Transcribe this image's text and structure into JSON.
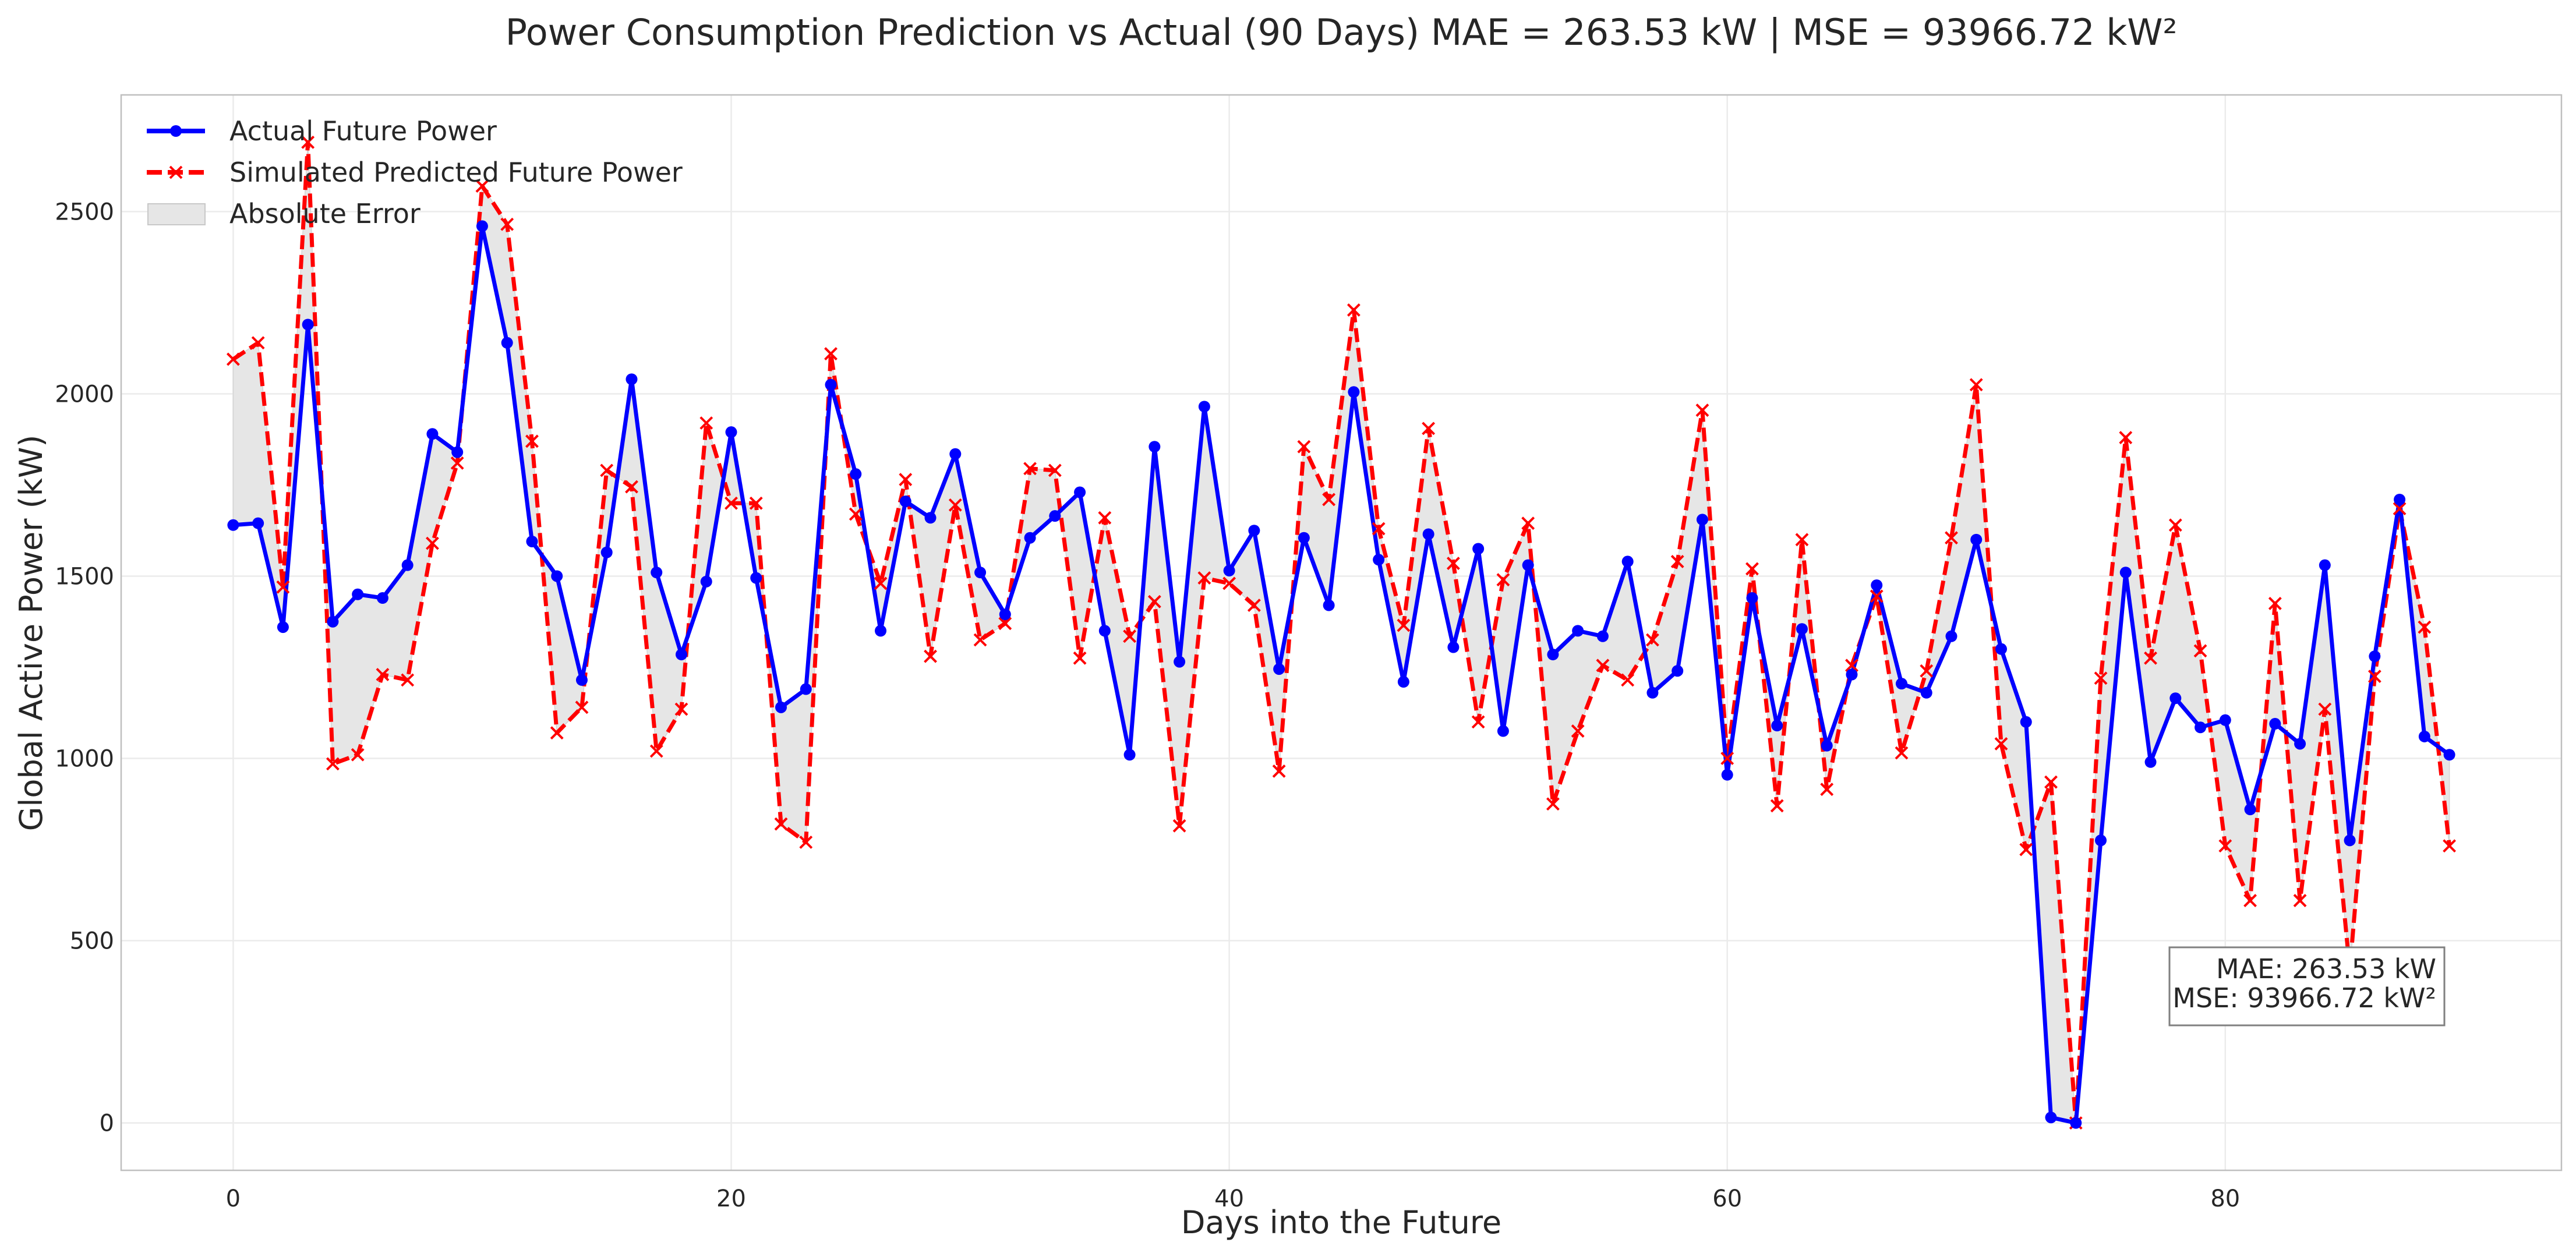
{
  "chart_data": {
    "type": "line",
    "title": "Power Consumption Prediction vs Actual (90 Days) MAE = 263.53 kW | MSE = 93966.72 kW²",
    "xlabel": "Days into the Future",
    "ylabel": "Global Active Power (kW)",
    "xlim": [
      -4.5,
      93.5
    ],
    "ylim": [
      -130,
      2820
    ],
    "xticks": [
      0,
      20,
      40,
      60,
      80
    ],
    "yticks": [
      0,
      500,
      1000,
      1500,
      2000,
      2500
    ],
    "grid": true,
    "legend_position": "top-left",
    "legend": [
      "Actual Future Power",
      "Simulated Predicted Future Power",
      "Absolute Error"
    ],
    "annotation": {
      "lines": [
        "MAE: 263.53 kW",
        "MSE: 93966.72 kW²"
      ],
      "position": "lower-right"
    },
    "x": [
      0,
      1,
      2,
      3,
      4,
      5,
      6,
      7,
      8,
      9,
      10,
      11,
      12,
      13,
      14,
      15,
      16,
      17,
      18,
      19,
      20,
      21,
      22,
      23,
      24,
      25,
      26,
      27,
      28,
      29,
      30,
      31,
      32,
      33,
      34,
      35,
      36,
      37,
      38,
      39,
      40,
      41,
      42,
      43,
      44,
      45,
      46,
      47,
      48,
      49,
      50,
      51,
      52,
      53,
      54,
      55,
      56,
      57,
      58,
      59,
      60,
      61,
      62,
      63,
      64,
      65,
      66,
      67,
      68,
      69,
      70,
      71,
      72,
      73,
      74,
      75,
      76,
      77,
      78,
      79,
      80,
      81,
      82,
      83,
      84,
      85,
      86,
      87,
      88,
      89
    ],
    "series": [
      {
        "name": "Actual Future Power",
        "color": "#0000ff",
        "style": "solid",
        "marker": "circle",
        "values": [
          1640,
          1645,
          1360,
          2190,
          1375,
          1450,
          1440,
          1530,
          1890,
          1840,
          2460,
          2140,
          1595,
          1500,
          1215,
          1565,
          2040,
          1510,
          1285,
          1485,
          1895,
          1495,
          1140,
          1190,
          2025,
          1780,
          1350,
          1705,
          1660,
          1835,
          1510,
          1395,
          1605,
          1665,
          1730,
          1350,
          1010,
          1855,
          1265,
          1965,
          1515,
          1625,
          1245,
          1605,
          1420,
          2005,
          1545,
          1210,
          1615,
          1305,
          1575,
          1075,
          1530,
          1285,
          1350,
          1335,
          1540,
          1180,
          1240,
          1655,
          955,
          1440,
          1090,
          1355,
          1035,
          1230,
          1475,
          1205,
          1180,
          1335,
          1600,
          1300,
          1100,
          15,
          0,
          775,
          1510,
          990,
          1165,
          1085,
          1105,
          860,
          1095,
          1040,
          1530,
          775,
          1280,
          1710,
          1060,
          1010
        ]
      },
      {
        "name": "Simulated Predicted Future Power",
        "color": "#ff0000",
        "style": "dashed",
        "marker": "x",
        "values": [
          2095,
          2140,
          1470,
          2690,
          985,
          1010,
          1230,
          1215,
          1590,
          1810,
          2570,
          2465,
          1870,
          1070,
          1140,
          1790,
          1745,
          1020,
          1135,
          1920,
          1700,
          1700,
          820,
          770,
          2110,
          1670,
          1480,
          1765,
          1280,
          1695,
          1325,
          1370,
          1795,
          1790,
          1275,
          1660,
          1335,
          1430,
          815,
          1495,
          1480,
          1420,
          965,
          1855,
          1710,
          2230,
          1630,
          1365,
          1905,
          1535,
          1100,
          1490,
          1645,
          875,
          1075,
          1255,
          1215,
          1325,
          1540,
          1955,
          1000,
          1520,
          870,
          1600,
          915,
          1255,
          1445,
          1015,
          1240,
          1605,
          2025,
          1040,
          750,
          935,
          0,
          1220,
          1880,
          1275,
          1640,
          1295,
          760,
          610,
          1425,
          610,
          1135,
          420,
          1225,
          1685,
          1360,
          760
        ]
      }
    ],
    "error_fill_color": "#e6e6e6"
  }
}
